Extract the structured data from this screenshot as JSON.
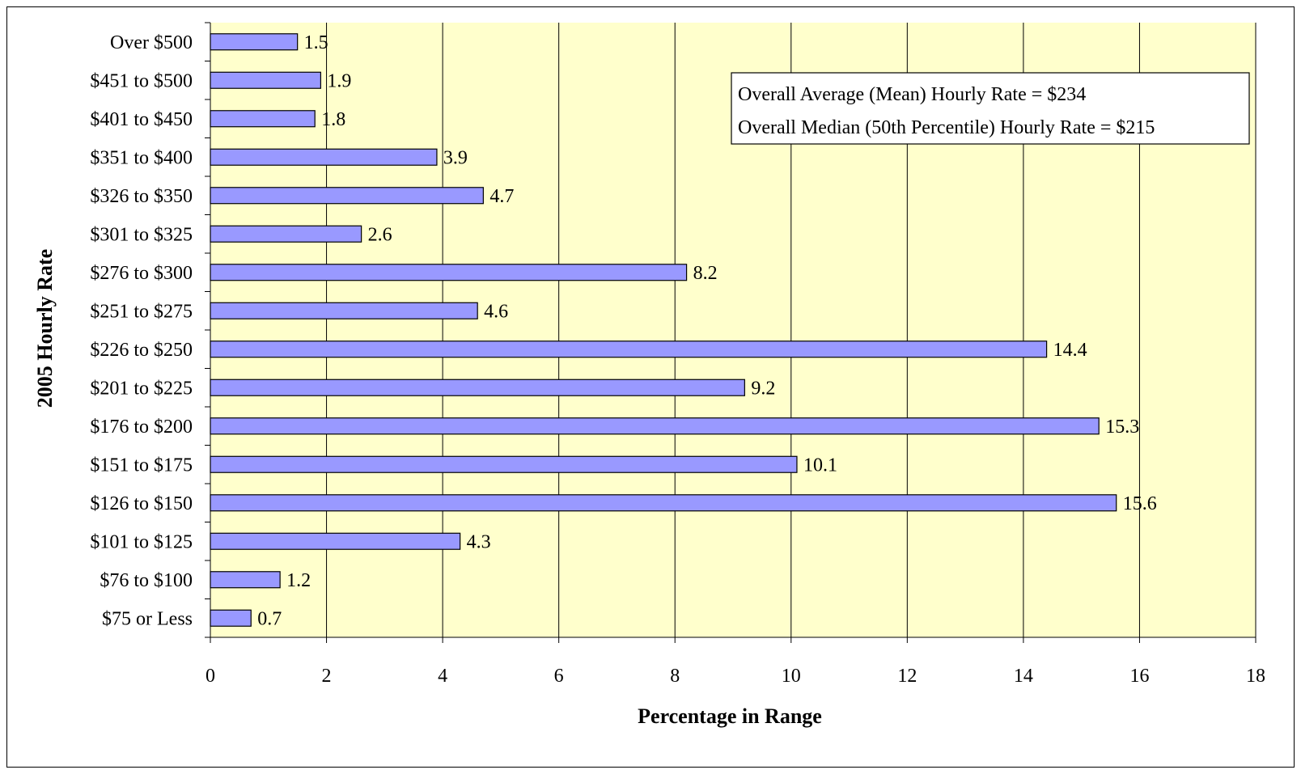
{
  "chart_data": {
    "type": "bar",
    "orientation": "horizontal",
    "categories": [
      "Over $500",
      "$451 to $500",
      "$401 to $450",
      "$351 to $400",
      "$326 to $350",
      "$301 to $325",
      "$276 to $300",
      "$251 to $275",
      "$226 to $250",
      "$201 to $225",
      "$176 to $200",
      "$151 to $175",
      "$126 to $150",
      "$101 to $125",
      "$76 to $100",
      "$75 or Less"
    ],
    "values": [
      1.5,
      1.9,
      1.8,
      3.9,
      4.7,
      2.6,
      8.2,
      4.6,
      14.4,
      9.2,
      15.3,
      10.1,
      15.6,
      4.3,
      1.2,
      0.7
    ],
    "xlabel": "Percentage in Range",
    "ylabel": "2005 Hourly Rate",
    "xlim": [
      0,
      18
    ],
    "xticks": [
      0,
      2,
      4,
      6,
      8,
      10,
      12,
      14,
      16,
      18
    ],
    "grid": "vertical",
    "data_labels": true,
    "annotation": {
      "lines": [
        "Overall Average (Mean) Hourly Rate = $234",
        "Overall Median (50th Percentile) Hourly Rate = $215"
      ],
      "placement": "top-right"
    },
    "colors": {
      "plot_background": "#FFFFCC",
      "bar_fill": "#9999FF",
      "bar_stroke": "#000000",
      "gridline": "#000000"
    }
  }
}
